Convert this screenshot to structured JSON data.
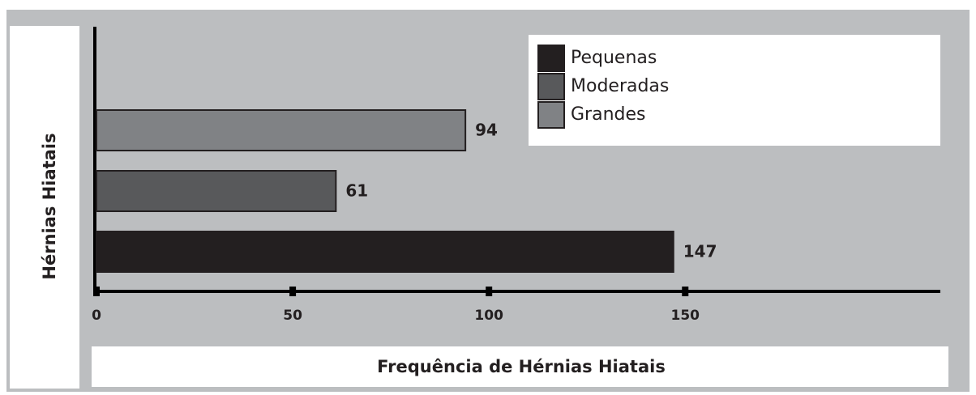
{
  "chart_data": {
    "type": "hbar",
    "x_label": "Frequência de Hérnias Hiatais",
    "y_label": "Hérnias Hiatais",
    "categories": [
      null
    ],
    "series": [
      {
        "name": "Pequenas",
        "color": "#231f20",
        "values": [
          147
        ]
      },
      {
        "name": "Moderadas",
        "color": "#58595b",
        "values": [
          61
        ]
      },
      {
        "name": "Grandes",
        "color": "#808285",
        "values": [
          94
        ]
      }
    ],
    "xlim": [
      0,
      215
    ],
    "xticks": [
      0,
      50,
      100,
      150
    ],
    "legend": "upper right",
    "grid": false
  }
}
